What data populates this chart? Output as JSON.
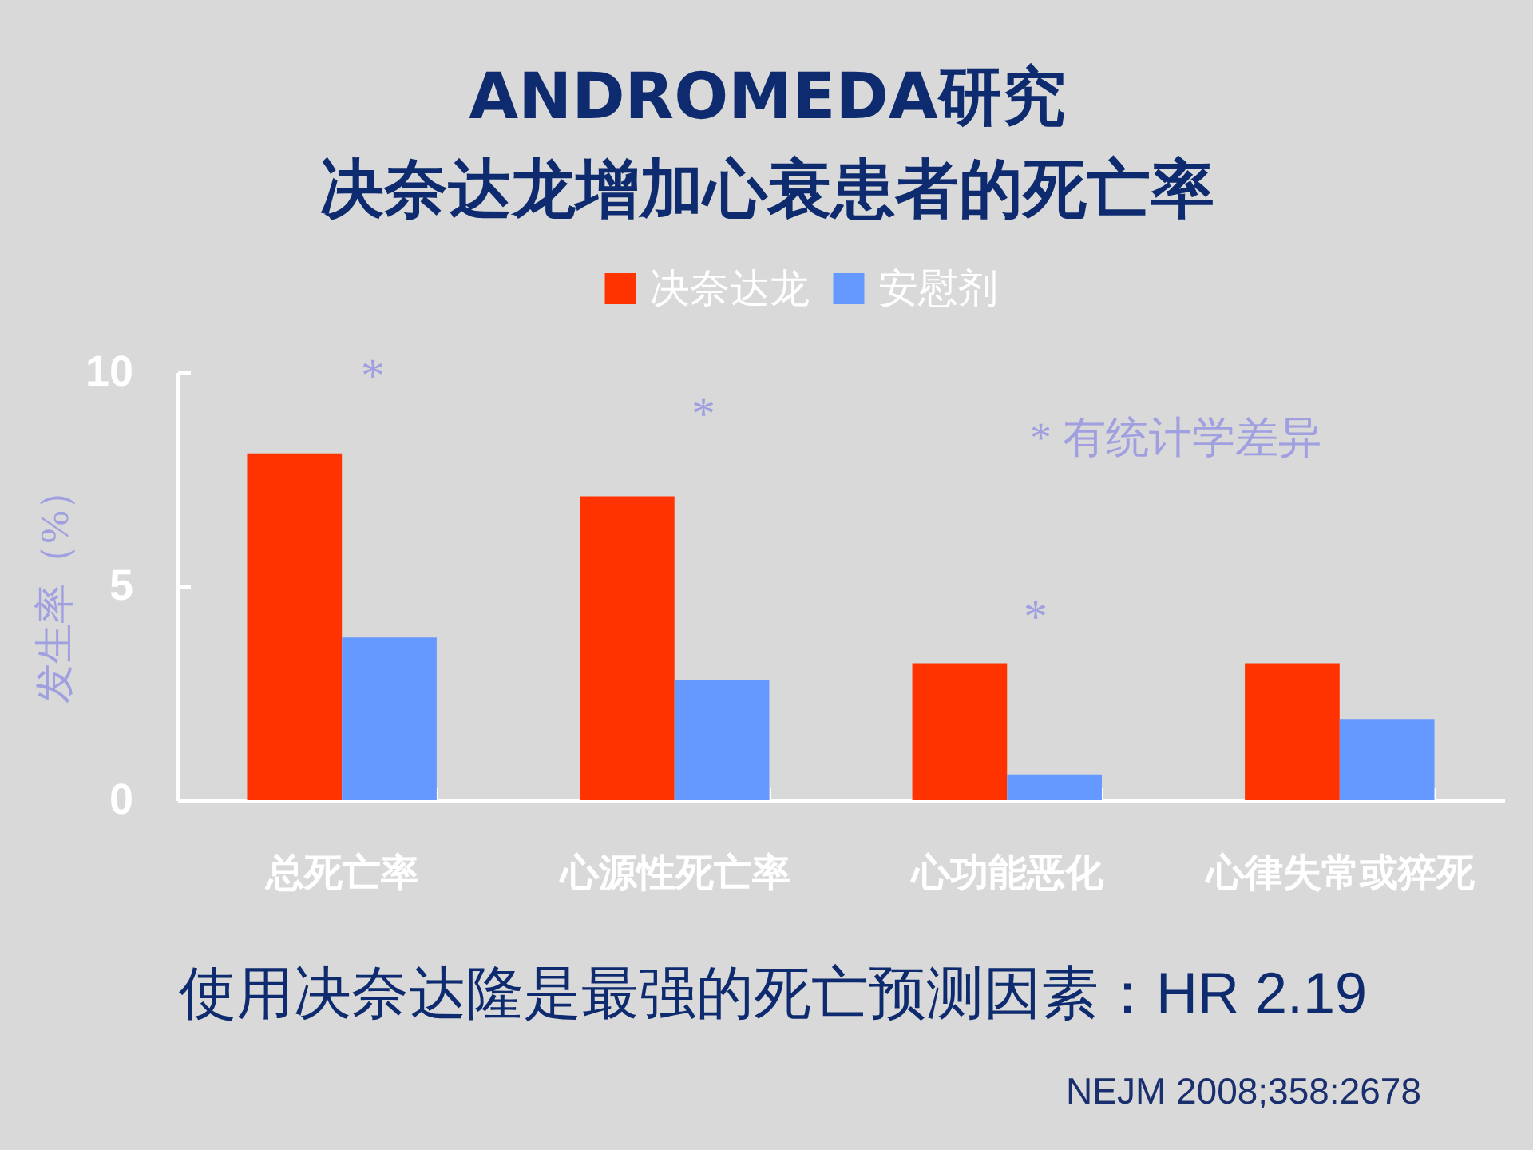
{
  "chart_data": {
    "type": "bar",
    "title": "ANDROMEDA研究",
    "subtitle": "决奈达龙增加心衰患者的死亡率",
    "ylabel": "发生率（%）",
    "categories": [
      "总死亡率",
      "心源性死亡率",
      "心功能恶化",
      "心律失常或猝死"
    ],
    "series": [
      {
        "name": "决奈达龙",
        "color": "#ff3300",
        "values": [
          8.1,
          7.1,
          3.2,
          3.2
        ]
      },
      {
        "name": "安慰剂",
        "color": "#6699ff",
        "values": [
          3.8,
          2.8,
          0.6,
          1.9
        ]
      }
    ],
    "ylim": [
      0,
      10
    ],
    "yticks": [
      0,
      5,
      10
    ],
    "grid": false,
    "legend": "top",
    "annotations": [
      "*",
      "*",
      "*",
      "* 有统计学差异",
      "使用决奈达隆是最强的死亡预测因素：HR 2.19",
      "NEJM 2008;358:2678"
    ]
  }
}
